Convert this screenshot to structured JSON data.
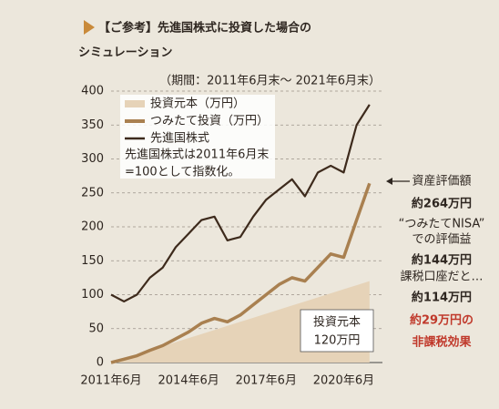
{
  "chart_data": {
    "type": "line",
    "title": "【ご参考】先進国株式に投資した場合の",
    "title_line2": "シミュレーション",
    "subtitle": "（期間：2011年6月末〜 2021年6月末）",
    "categories": [
      "2011年6月",
      null,
      null,
      null,
      null,
      null,
      "2014年6月",
      null,
      null,
      null,
      null,
      null,
      "2017年6月",
      null,
      null,
      null,
      null,
      null,
      "2020年6月",
      null,
      null
    ],
    "ylim": [
      0,
      400
    ],
    "yticks": [
      0,
      50,
      100,
      150,
      200,
      250,
      300,
      350,
      400
    ],
    "grid": true,
    "series": [
      {
        "name": "投資元本（万円）",
        "color": "#e6d3b8",
        "style": "area",
        "values": [
          0,
          6,
          12,
          18,
          24,
          30,
          36,
          42,
          48,
          54,
          60,
          66,
          72,
          78,
          84,
          90,
          96,
          102,
          108,
          114,
          120
        ]
      },
      {
        "name": "つみたて投資（万円）",
        "color": "#a98050",
        "style": "line",
        "values": [
          0,
          5,
          10,
          18,
          25,
          35,
          45,
          58,
          65,
          60,
          70,
          85,
          100,
          115,
          125,
          120,
          140,
          160,
          155,
          210,
          264
        ]
      },
      {
        "name": "先進国株式",
        "color": "#3d2a1c",
        "style": "line",
        "values": [
          100,
          90,
          100,
          125,
          140,
          170,
          190,
          210,
          215,
          180,
          185,
          215,
          240,
          255,
          270,
          245,
          280,
          290,
          280,
          350,
          380
        ]
      }
    ],
    "legend_note": [
      "先進国株式は2011年6月末",
      "=100として指数化。"
    ],
    "box_note": [
      "投資元本",
      "120万円"
    ],
    "annotations": [
      "資産評価額",
      "約264万円",
      "“つみたてNISA”",
      "での評価益",
      "約144万円",
      "課税口座だと…",
      "約114万円",
      "約29万円の",
      "非課税効果"
    ]
  }
}
